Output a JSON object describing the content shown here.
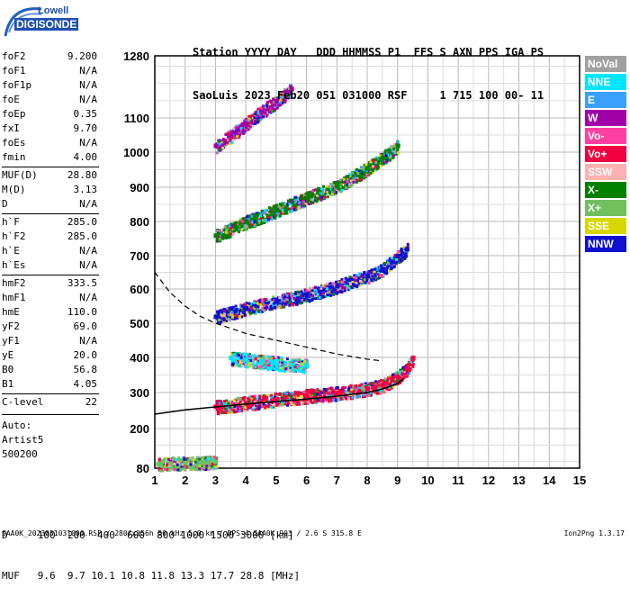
{
  "logo": {
    "line1": "Lowell",
    "line2": "DIGISONDE"
  },
  "header": {
    "line1": "Station YYYY DAY   DDD HHMMSS P1  FFS S AXN PPS IGA PS",
    "line2": "SaoLuis 2023 Feb20 051 031000 RSF     1 715 100 00- 11"
  },
  "params": [
    {
      "key": "foF2",
      "val": "9.200"
    },
    {
      "key": "foF1",
      "val": "N/A"
    },
    {
      "key": "foF1p",
      "val": "N/A"
    },
    {
      "key": "foE",
      "val": "N/A"
    },
    {
      "key": "foEp",
      "val": "0.35"
    },
    {
      "key": "fxI",
      "val": "9.70"
    },
    {
      "key": "foEs",
      "val": "N/A"
    },
    {
      "key": "fmin",
      "val": "4.00"
    },
    {
      "key": "MUF(D)",
      "val": "28.80"
    },
    {
      "key": "M(D)",
      "val": "3.13"
    },
    {
      "key": "D",
      "val": "N/A"
    },
    {
      "key": "h`F",
      "val": "285.0"
    },
    {
      "key": "h`F2",
      "val": "285.0"
    },
    {
      "key": "h`E",
      "val": "N/A"
    },
    {
      "key": "h`Es",
      "val": "N/A"
    },
    {
      "key": "hmF2",
      "val": "333.5"
    },
    {
      "key": "hmF1",
      "val": "N/A"
    },
    {
      "key": "hmE",
      "val": "110.0"
    },
    {
      "key": "yF2",
      "val": "69.0"
    },
    {
      "key": "yF1",
      "val": "N/A"
    },
    {
      "key": "yE",
      "val": "20.0"
    },
    {
      "key": "B0",
      "val": "56.8"
    },
    {
      "key": "B1",
      "val": "4.05"
    },
    {
      "key": "C-level",
      "val": "22"
    }
  ],
  "autoscaling": {
    "line1": "Auto:",
    "line2": "Artist5",
    "line3": "500200"
  },
  "legend": [
    {
      "label": "NoVal",
      "color": "#a0a0a0"
    },
    {
      "label": "NNE",
      "color": "#00e5ff"
    },
    {
      "label": "E",
      "color": "#3aa0ff"
    },
    {
      "label": "W",
      "color": "#a000a8"
    },
    {
      "label": "Vo-",
      "color": "#ff40a0"
    },
    {
      "label": "Vo+",
      "color": "#f00040"
    },
    {
      "label": "SSW",
      "color": "#ffb0b0"
    },
    {
      "label": "X-",
      "color": "#008000"
    },
    {
      "label": "X+",
      "color": "#70c060"
    },
    {
      "label": "SSE",
      "color": "#d8d800"
    },
    {
      "label": "NNW",
      "color": "#1010d0"
    }
  ],
  "dmuf": {
    "line1": "D     100  200  400  600  800 1000 1500 3000 [km]",
    "line2": "MUF   9.6  9.7 10.1 10.8 11.8 13.3 17.7 28.8 [MHz]"
  },
  "footer": "SAA0K_2023051031000.RSF / 280fx256h 50 kHz 5.0 km / DPS-4 SAA0K 903 / 2.6 S 315.8 E",
  "version": "Ion2Png 1.3.17",
  "chart_data": {
    "type": "scatter",
    "title": "",
    "xlabel": "",
    "ylabel": "",
    "xlim": [
      1,
      15
    ],
    "ylim": [
      80,
      1280
    ],
    "xticks": [
      1,
      2,
      3,
      4,
      5,
      6,
      7,
      8,
      9,
      10,
      11,
      12,
      13,
      14,
      15
    ],
    "yticks": [
      80,
      200,
      300,
      400,
      500,
      600,
      700,
      800,
      900,
      1000,
      1100,
      1280
    ],
    "grid": true,
    "series": [
      {
        "name": "Vo+",
        "color": "#f00040",
        "x": [
          3.0,
          4.0,
          5.0,
          6.0,
          7.0,
          8.0,
          8.5,
          9.0,
          9.3,
          9.5
        ],
        "y": [
          262,
          272,
          282,
          292,
          300,
          312,
          322,
          345,
          370,
          400
        ]
      },
      {
        "name": "NNW",
        "color": "#1010d0",
        "x": [
          3.0,
          4.0,
          5.0,
          6.0,
          7.0,
          8.0,
          8.5,
          9.0,
          9.3
        ],
        "y": [
          520,
          545,
          565,
          585,
          610,
          640,
          660,
          700,
          720
        ]
      },
      {
        "name": "X-",
        "color": "#008000",
        "x": [
          3.0,
          4.0,
          5.0,
          6.0,
          7.0,
          8.0,
          8.5,
          9.0
        ],
        "y": [
          760,
          800,
          835,
          870,
          905,
          955,
          985,
          1020
        ]
      },
      {
        "name": "W",
        "color": "#a000a8",
        "x": [
          3.0,
          3.5,
          4.0,
          4.5,
          5.0,
          5.5
        ],
        "y": [
          1020,
          1050,
          1085,
          1120,
          1150,
          1185
        ]
      },
      {
        "name": "NNE",
        "color": "#00e5ff",
        "x": [
          3.5,
          4.0,
          4.5,
          5.0,
          5.5,
          6.0
        ],
        "y": [
          400,
          395,
          390,
          385,
          380,
          378
        ]
      },
      {
        "name": "X+",
        "color": "#70c060",
        "x": [
          1.1,
          1.5,
          2.0,
          2.5,
          3.0
        ],
        "y": [
          93,
          95,
          97,
          98,
          100
        ]
      }
    ],
    "profile_curve": {
      "x": [
        1.0,
        2.0,
        3.0,
        4.0,
        5.0,
        6.0,
        7.0,
        8.0,
        8.5,
        9.0,
        9.2
      ],
      "y": [
        240,
        252,
        260,
        268,
        275,
        282,
        290,
        300,
        310,
        325,
        340
      ]
    },
    "dashed_curve": {
      "x": [
        1.0,
        1.5,
        2.0,
        2.5,
        3.0,
        4.0,
        5.0,
        6.0,
        7.0,
        8.0,
        8.5
      ],
      "y": [
        650,
        590,
        550,
        520,
        500,
        470,
        450,
        430,
        410,
        395,
        390
      ]
    }
  }
}
